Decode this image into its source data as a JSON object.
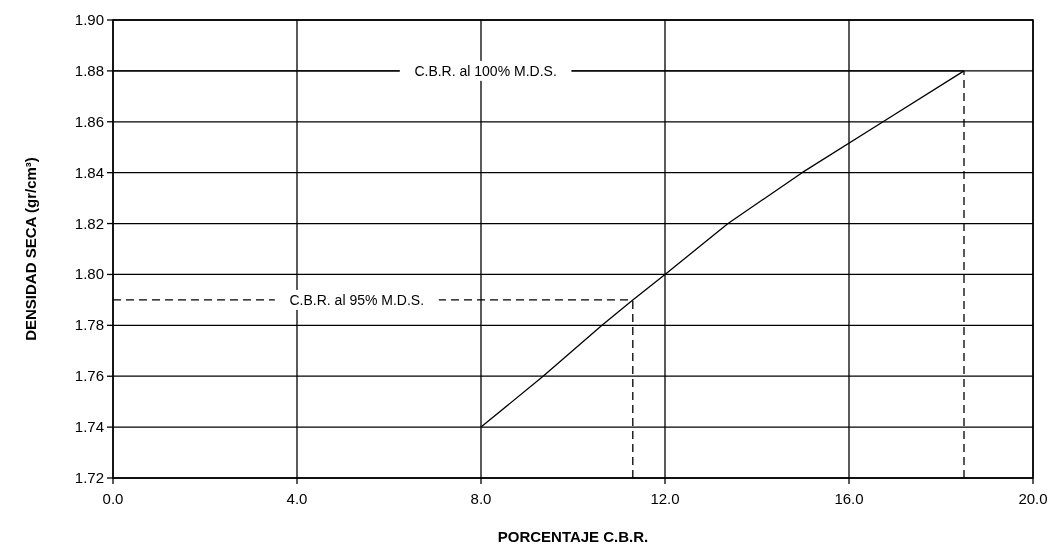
{
  "chart_data": {
    "type": "line",
    "xlabel": "PORCENTAJE C.B.R.",
    "ylabel": "DENSIDAD SECA (gr/cm³)",
    "series": [
      {
        "color": "#000000",
        "line_style": "solid",
        "x": [
          8,
          9.35,
          10.63,
          11.3,
          12,
          13.37,
          14.98,
          16.74,
          18.5
        ],
        "values": [
          1.74,
          1.76,
          1.78,
          1.79,
          1.8,
          1.82,
          1.84,
          1.86,
          1.88
        ]
      },
      {
        "color": "#000000",
        "line_style": "solid",
        "x": [
          0,
          18.5
        ],
        "values": [
          1.88,
          1.88
        ]
      },
      {
        "color": "#000000",
        "line_style": "dashed",
        "x": [
          18.5,
          18.5
        ],
        "values": [
          1.72,
          1.88
        ]
      },
      {
        "color": "#000000",
        "line_style": "dashed",
        "x": [
          0,
          11.3
        ],
        "values": [
          1.79,
          1.79
        ]
      },
      {
        "color": "#000000",
        "line_style": "dashed",
        "x": [
          11.3,
          11.3
        ],
        "values": [
          1.72,
          1.79
        ]
      }
    ],
    "annotations": [
      {
        "text": "C.B.R. al 100% M.D.S.",
        "x": 8.1,
        "y": 1.88
      },
      {
        "text": "C.B.R. al 95% M.D.S.",
        "x": 5.3,
        "y": 1.79
      }
    ],
    "xlim": [
      0,
      20
    ],
    "xticks": [
      {
        "value": 0,
        "label": "0.0"
      },
      {
        "value": 4,
        "label": "4.0"
      },
      {
        "value": 8,
        "label": "8.0"
      },
      {
        "value": 12,
        "label": "12.0"
      },
      {
        "value": 16,
        "label": "16.0"
      },
      {
        "value": 20,
        "label": "20.0"
      }
    ],
    "ylim": [
      1.72,
      1.9
    ],
    "yticks": [
      {
        "value": 1.72,
        "label": "1.72"
      },
      {
        "value": 1.74,
        "label": "1.74"
      },
      {
        "value": 1.76,
        "label": "1.76"
      },
      {
        "value": 1.78,
        "label": "1.78"
      },
      {
        "value": 1.8,
        "label": "1.80"
      },
      {
        "value": 1.82,
        "label": "1.82"
      },
      {
        "value": 1.84,
        "label": "1.84"
      },
      {
        "value": 1.86,
        "label": "1.86"
      },
      {
        "value": 1.88,
        "label": "1.88"
      },
      {
        "value": 1.9,
        "label": "1.90"
      }
    ],
    "grid": true
  }
}
